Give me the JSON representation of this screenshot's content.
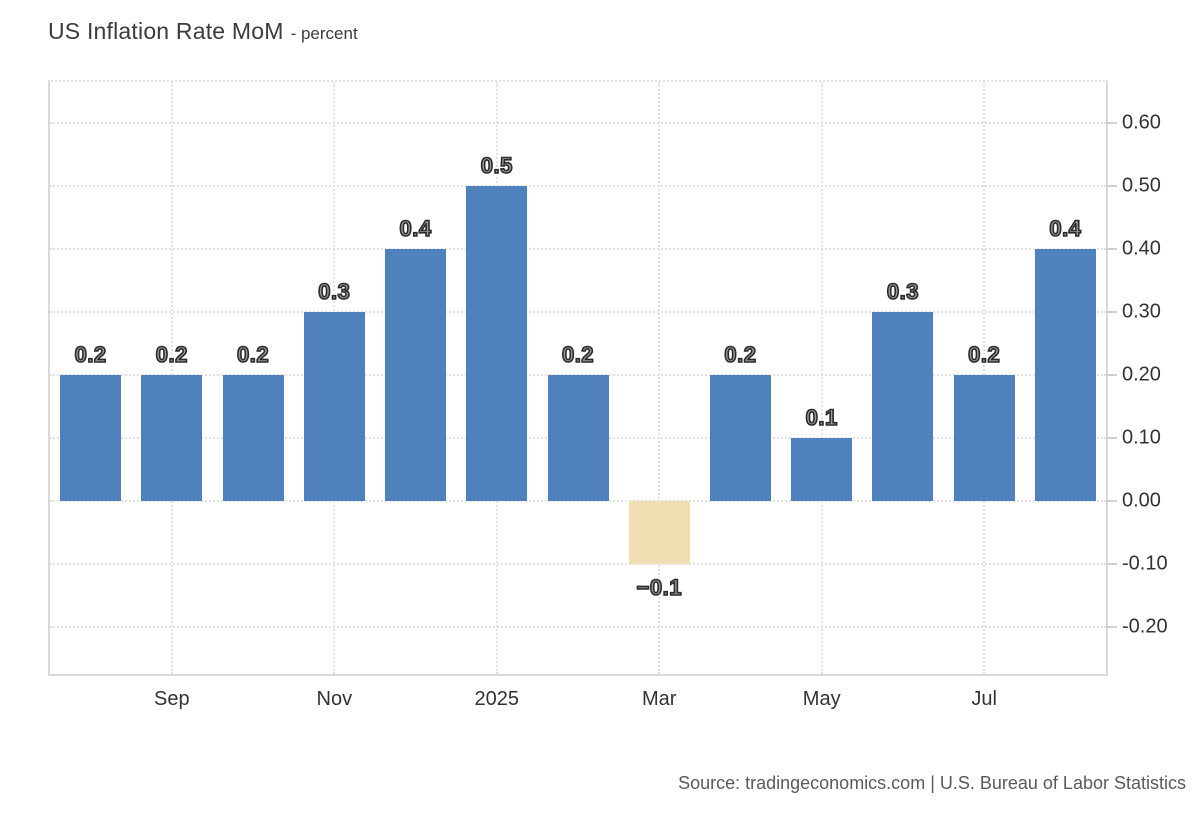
{
  "header": {
    "title": "US Inflation Rate MoM",
    "subtitle": "- percent"
  },
  "footer": {
    "source": "Source: tradingeconomics.com | U.S. Bureau of Labor Statistics"
  },
  "colors": {
    "bar_positive": "#4f81bd",
    "bar_negative": "#f2deb3",
    "grid": "#e2e2e2",
    "axis": "#d9d9d9",
    "tick": "#cfcfcf",
    "text": "#333333",
    "title_text": "#3b3b3b",
    "source_text": "#5a5a5a",
    "bar_label_fill": "#9b9b9b",
    "bar_label_stroke": "#2b2b2b"
  },
  "chart_data": {
    "type": "bar",
    "title": "US Inflation Rate MoM",
    "ylabel": "percent",
    "values": [
      0.2,
      0.2,
      0.2,
      0.3,
      0.4,
      0.5,
      0.2,
      -0.1,
      0.2,
      0.1,
      0.3,
      0.2,
      0.4
    ],
    "bar_labels": [
      "0.2",
      "0.2",
      "0.2",
      "0.3",
      "0.4",
      "0.5",
      "0.2",
      "−0.1",
      "0.2",
      "0.1",
      "0.3",
      "0.2",
      "0.4"
    ],
    "x_ticks": [
      {
        "index": 1,
        "label": "Sep"
      },
      {
        "index": 3,
        "label": "Nov"
      },
      {
        "index": 5,
        "label": "2025"
      },
      {
        "index": 7,
        "label": "Mar"
      },
      {
        "index": 9,
        "label": "May"
      },
      {
        "index": 11,
        "label": "Jul"
      }
    ],
    "y_ticks": [
      {
        "value": 0.6,
        "label": "0.60"
      },
      {
        "value": 0.5,
        "label": "0.50"
      },
      {
        "value": 0.4,
        "label": "0.40"
      },
      {
        "value": 0.3,
        "label": "0.30"
      },
      {
        "value": 0.2,
        "label": "0.20"
      },
      {
        "value": 0.1,
        "label": "0.10"
      },
      {
        "value": 0.0,
        "label": "0.00"
      },
      {
        "value": -0.1,
        "label": "-0.10"
      },
      {
        "value": -0.2,
        "label": "-0.20"
      }
    ],
    "ylim": [
      -0.275,
      0.665
    ],
    "grid": true,
    "legend": "none",
    "yaxis_side": "right"
  }
}
